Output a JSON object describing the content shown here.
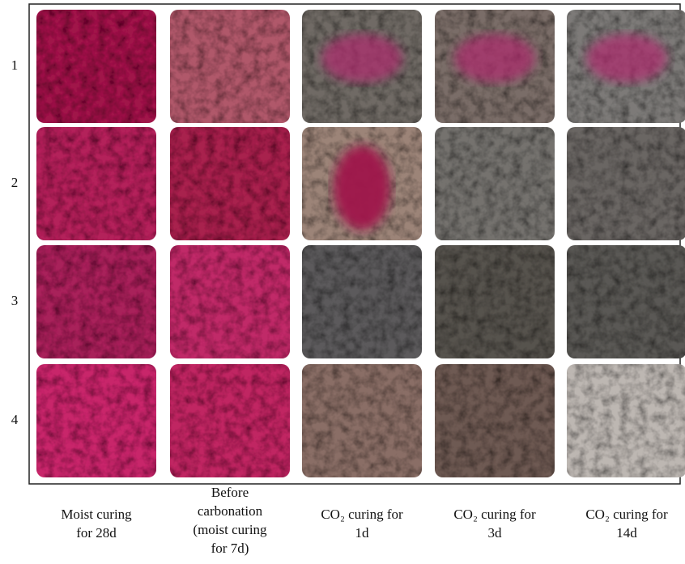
{
  "rows": [
    "1",
    "2",
    "3",
    "4"
  ],
  "columns": [
    {
      "lines": [
        "Moist curing",
        "for 28d"
      ]
    },
    {
      "lines": [
        "Before",
        "carbonation",
        "(moist curing",
        "for 7d)"
      ]
    },
    {
      "lines": [
        "CO₂ curing for",
        "1d"
      ]
    },
    {
      "lines": [
        "CO₂ curing for",
        "3d"
      ]
    },
    {
      "lines": [
        "CO₂ curing for",
        "14d"
      ]
    }
  ]
}
